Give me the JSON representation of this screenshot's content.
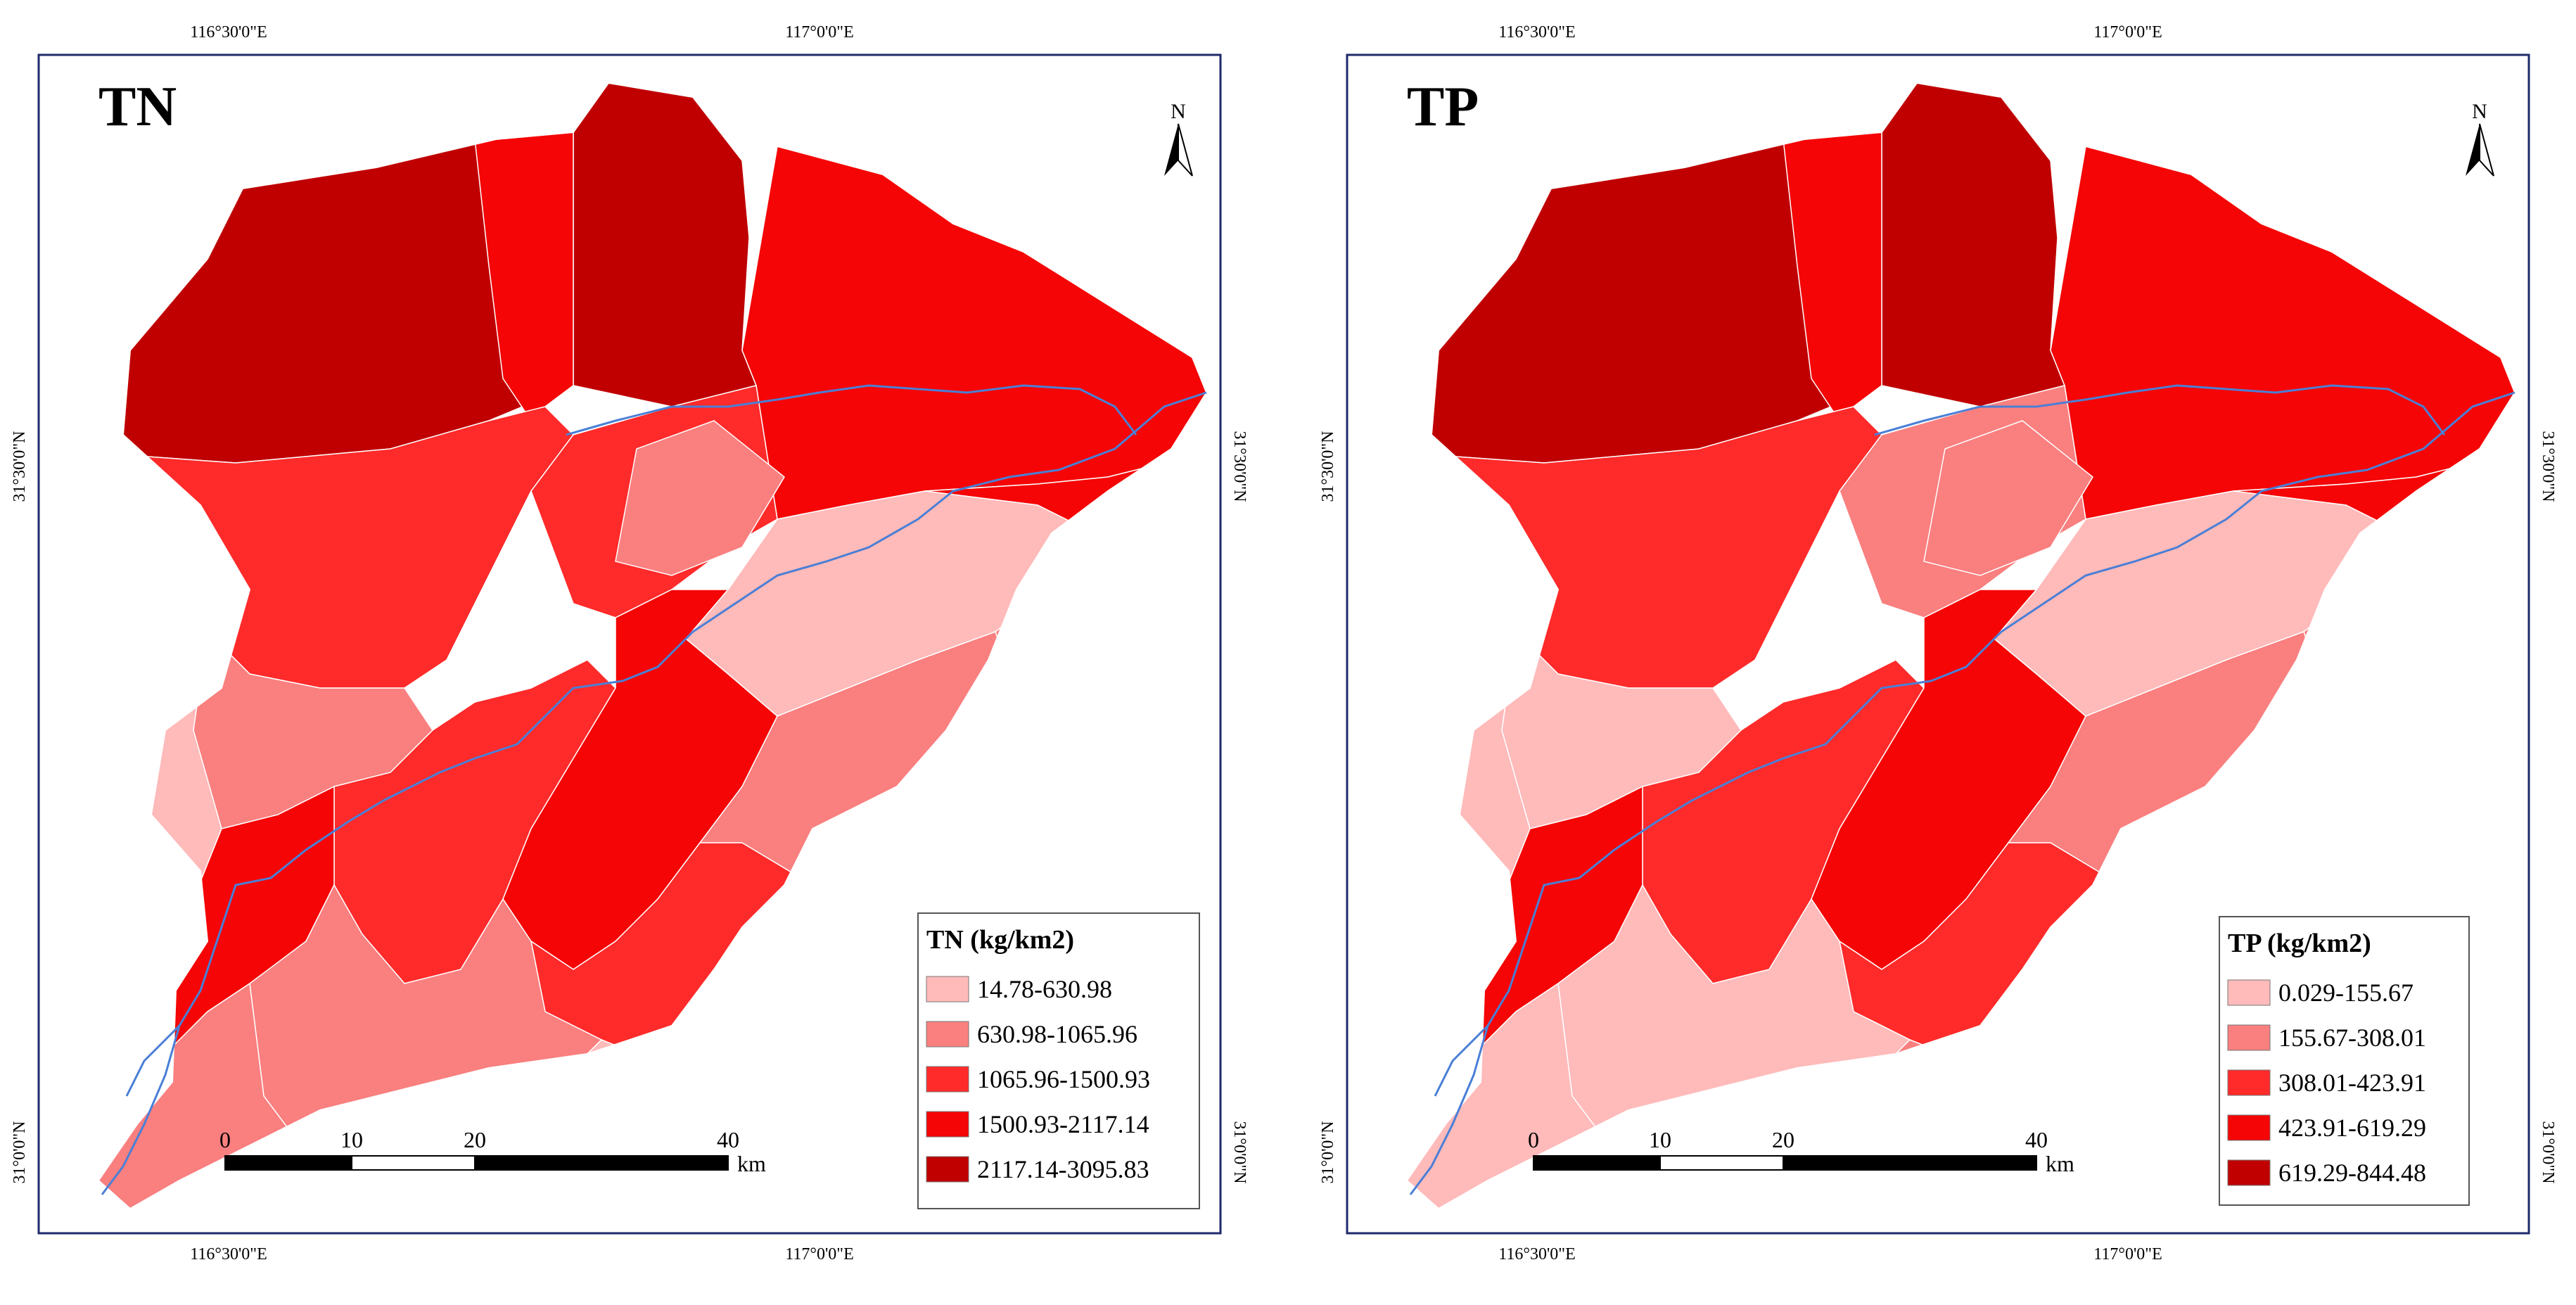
{
  "colors": {
    "class1": "#FFBABA",
    "class2": "#FA7F7F",
    "class3": "#FF2A2A",
    "class4": "#F50505",
    "class5": "#C00000",
    "river": "#4A7FD6",
    "frame": "#1F2A6B"
  },
  "panels": [
    {
      "id": "tn",
      "title": "TN",
      "legend": {
        "title": "TN (kg/km2)",
        "items": [
          "14.78-630.98",
          "630.98-1065.96",
          "1065.96-1500.93",
          "1500.93-2117.14",
          "2117.14-3095.83"
        ]
      },
      "grid": {
        "lon_top": [
          "116°30'0\"E",
          "117°0'0\"E"
        ],
        "lon_bottom": [
          "116°30'0\"E",
          "117°0'0\"E"
        ],
        "lat_left": [
          "31°30'0\"N",
          "31°0'0\"N"
        ],
        "lat_right": [
          "31°30'0\"N",
          "31°0'0\"N"
        ]
      },
      "north": "N",
      "scalebar": {
        "ticks": [
          "0",
          "10",
          "20",
          "40"
        ],
        "unit": "km"
      },
      "zones": [
        5,
        5,
        4,
        4,
        3,
        3,
        2,
        4,
        1,
        2,
        1,
        2,
        3,
        4,
        2,
        1,
        3,
        4,
        2,
        2,
        1
      ]
    },
    {
      "id": "tp",
      "title": "TP",
      "legend": {
        "title": "TP (kg/km2)",
        "items": [
          "0.029-155.67",
          "155.67-308.01",
          "308.01-423.91",
          "423.91-619.29",
          "619.29-844.48"
        ]
      },
      "grid": {
        "lon_top": [
          "116°30'0\"E",
          "117°0'0\"E"
        ],
        "lon_bottom": [
          "116°30'0\"E",
          "117°0'0\"E"
        ],
        "lat_left": [
          "31°30'0\"N",
          "31°0'0\"N"
        ],
        "lat_right": [
          "31°30'0\"N",
          "31°0'0\"N"
        ]
      },
      "north": "N",
      "scalebar": {
        "ticks": [
          "0",
          "10",
          "20",
          "40"
        ],
        "unit": "km"
      },
      "zones": [
        5,
        5,
        4,
        4,
        3,
        2,
        2,
        4,
        1,
        2,
        1,
        1,
        3,
        4,
        2,
        1,
        3,
        4,
        1,
        1,
        2
      ]
    }
  ]
}
